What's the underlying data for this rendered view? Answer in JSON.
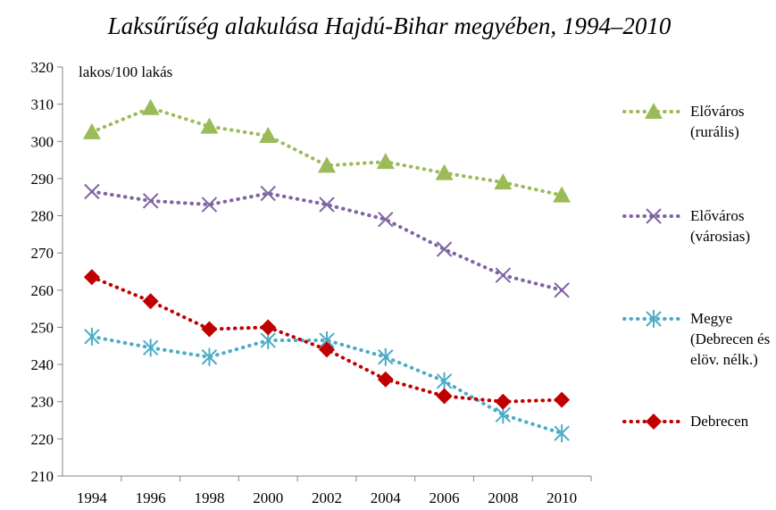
{
  "chart_data": {
    "type": "line",
    "title": "Laksűrűség alakulása Hajdú-Bihar megyében, 1994–2010",
    "y_label": "lakos/100 lakás",
    "categories": [
      "1994",
      "1996",
      "1998",
      "2000",
      "2002",
      "2004",
      "2006",
      "2008",
      "2010"
    ],
    "ylim": [
      210,
      320
    ],
    "yticks": [
      210,
      220,
      230,
      240,
      250,
      260,
      270,
      280,
      290,
      300,
      310,
      320
    ],
    "legend": "right",
    "series": [
      {
        "name": "Előváros (rurális)",
        "color": "#9bbb59",
        "marker": "triangle",
        "values": [
          302.5,
          309,
          304,
          301.5,
          293.5,
          294.5,
          291.5,
          289,
          285.5
        ]
      },
      {
        "name": "Előváros (városias)",
        "color": "#8064a2",
        "marker": "x",
        "values": [
          286.5,
          284,
          283,
          286,
          283,
          279,
          271,
          264,
          260
        ]
      },
      {
        "name": "Megye (Debrecen és elöv. nélk.)",
        "color": "#4bacc6",
        "marker": "star",
        "values": [
          247.5,
          244.5,
          242,
          246.5,
          246.5,
          242,
          235.5,
          226.5,
          221.5
        ]
      },
      {
        "name": "Debrecen",
        "color": "#c00000",
        "marker": "diamond",
        "values": [
          263.5,
          257,
          249.5,
          250,
          244,
          236,
          231.5,
          230,
          230.5
        ]
      }
    ]
  }
}
